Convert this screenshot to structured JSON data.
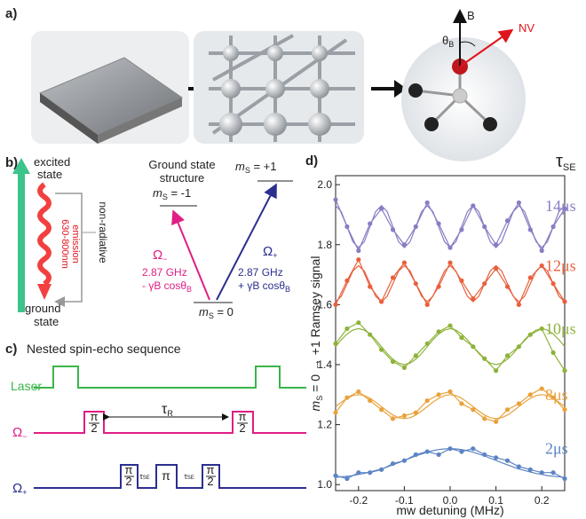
{
  "panel_a": {
    "label": "a)",
    "b_field": "B",
    "theta": [
      "θ",
      "B"
    ],
    "nv": "NV"
  },
  "panel_b": {
    "label": "b)",
    "excited": [
      "excited",
      "state"
    ],
    "ground": [
      "ground",
      "state"
    ],
    "pumping": "532 nm pumping",
    "emission": [
      "630-800nm",
      "emission"
    ],
    "nonradiative": "non-radiative",
    "structure": [
      "Ground state",
      "structure"
    ],
    "m_minus": [
      "m",
      "S",
      " = -1"
    ],
    "m_plus": [
      "m",
      "S",
      " = +1"
    ],
    "m_zero": [
      "m",
      "S",
      " = 0"
    ],
    "omega_minus": [
      "Ω",
      "−"
    ],
    "omega_plus": [
      "Ω",
      "+"
    ],
    "freq": "2.87 GHz",
    "shift_minus": [
      "- γB cosθ",
      "B"
    ],
    "shift_plus": [
      "+ γB cosθ",
      "B"
    ]
  },
  "panel_c": {
    "label": "c)",
    "title": "Nested spin-echo sequence",
    "laser": "Laser",
    "omega_minus": [
      "Ω",
      "−"
    ],
    "omega_plus": [
      "Ω",
      "+"
    ],
    "half_pi": [
      "π",
      "2"
    ],
    "pi": "π",
    "tau_r": [
      "τ",
      "R"
    ],
    "tau_se": [
      "τ",
      "SE"
    ]
  },
  "chart_data": {
    "type": "line",
    "label": "d)",
    "x_label": "mw detuning (MHz)",
    "y_label": [
      "m",
      "S",
      " = 0 → +1 Ramsey signal"
    ],
    "legend_title": [
      "τ",
      "SE"
    ],
    "xlim": [
      -0.25,
      0.25
    ],
    "xticks": [
      -0.2,
      -0.1,
      {
        "value": 0,
        "label": "0.0"
      },
      0.1,
      0.2
    ],
    "ylim": [
      0.98,
      2.03
    ],
    "yticks": [
      {
        "value": 1,
        "label": "1.0"
      },
      1.2,
      1.4,
      1.6,
      1.8,
      {
        "value": 2,
        "label": "2.0"
      }
    ],
    "x": [
      -0.25,
      -0.225,
      -0.2,
      -0.175,
      -0.15,
      -0.125,
      -0.1,
      -0.075,
      -0.05,
      -0.025,
      0,
      0.025,
      0.05,
      0.075,
      0.1,
      0.125,
      0.15,
      0.175,
      0.2,
      0.225,
      0.25
    ],
    "fit_x": [
      -0.25,
      -0.2375,
      -0.225,
      -0.2125,
      -0.2,
      -0.1875,
      -0.175,
      -0.1625,
      -0.15,
      -0.1375,
      -0.125,
      -0.1125,
      -0.1,
      -0.0875,
      -0.075,
      -0.0625,
      -0.05,
      -0.0375,
      -0.025,
      -0.0125,
      0,
      0.0125,
      0.025,
      0.0375,
      0.05,
      0.0625,
      0.075,
      0.0875,
      0.1,
      0.1125,
      0.125,
      0.1375,
      0.15,
      0.1625,
      0.175,
      0.1875,
      0.2,
      0.2125,
      0.225,
      0.2375,
      0.25
    ],
    "series": [
      {
        "name": "14μs",
        "color": "#8a7cc4",
        "values": [
          1.95,
          1.86,
          1.78,
          1.87,
          1.92,
          1.85,
          1.8,
          1.86,
          1.94,
          1.87,
          1.79,
          1.85,
          1.93,
          1.86,
          1.8,
          1.88,
          1.94,
          1.85,
          1.78,
          1.86,
          1.92
        ],
        "fit": [
          1.93,
          1.91,
          1.86,
          1.81,
          1.79,
          1.81,
          1.86,
          1.91,
          1.93,
          1.91,
          1.86,
          1.81,
          1.79,
          1.81,
          1.86,
          1.91,
          1.93,
          1.91,
          1.86,
          1.81,
          1.79,
          1.81,
          1.86,
          1.91,
          1.93,
          1.91,
          1.86,
          1.81,
          1.79,
          1.81,
          1.86,
          1.91,
          1.93,
          1.91,
          1.86,
          1.81,
          1.79,
          1.81,
          1.86,
          1.91,
          1.93
        ]
      },
      {
        "name": "12μs",
        "color": "#e8603c",
        "values": [
          1.6,
          1.68,
          1.75,
          1.66,
          1.61,
          1.69,
          1.74,
          1.67,
          1.6,
          1.66,
          1.74,
          1.68,
          1.62,
          1.67,
          1.72,
          1.66,
          1.6,
          1.69,
          1.73,
          1.67,
          1.61
        ],
        "fit": [
          1.61,
          1.628,
          1.67,
          1.712,
          1.73,
          1.712,
          1.67,
          1.628,
          1.61,
          1.628,
          1.67,
          1.712,
          1.73,
          1.712,
          1.67,
          1.628,
          1.61,
          1.628,
          1.67,
          1.712,
          1.73,
          1.712,
          1.67,
          1.628,
          1.61,
          1.628,
          1.67,
          1.712,
          1.73,
          1.712,
          1.67,
          1.628,
          1.61,
          1.628,
          1.67,
          1.712,
          1.73,
          1.712,
          1.67,
          1.628,
          1.61
        ]
      },
      {
        "name": "10μs",
        "color": "#8db33a",
        "values": [
          1.47,
          1.52,
          1.54,
          1.5,
          1.45,
          1.41,
          1.39,
          1.43,
          1.47,
          1.51,
          1.53,
          1.49,
          1.46,
          1.42,
          1.38,
          1.43,
          1.46,
          1.5,
          1.52,
          1.44,
          1.38
        ],
        "fit": [
          1.46,
          1.483,
          1.502,
          1.515,
          1.52,
          1.515,
          1.502,
          1.483,
          1.46,
          1.437,
          1.418,
          1.405,
          1.4,
          1.405,
          1.418,
          1.437,
          1.46,
          1.483,
          1.502,
          1.515,
          1.52,
          1.515,
          1.502,
          1.483,
          1.46,
          1.437,
          1.418,
          1.405,
          1.4,
          1.405,
          1.418,
          1.437,
          1.46,
          1.483,
          1.502,
          1.515,
          1.52,
          1.515,
          1.502,
          1.483,
          1.46
        ]
      },
      {
        "name": "8μs",
        "color": "#e9a23b",
        "values": [
          1.24,
          1.29,
          1.31,
          1.28,
          1.25,
          1.22,
          1.23,
          1.24,
          1.28,
          1.3,
          1.31,
          1.27,
          1.25,
          1.22,
          1.21,
          1.25,
          1.27,
          1.3,
          1.32,
          1.29,
          1.25
        ],
        "fit": [
          1.26,
          1.275,
          1.288,
          1.297,
          1.3,
          1.297,
          1.288,
          1.275,
          1.26,
          1.245,
          1.232,
          1.223,
          1.22,
          1.223,
          1.232,
          1.245,
          1.26,
          1.275,
          1.288,
          1.297,
          1.3,
          1.297,
          1.288,
          1.275,
          1.26,
          1.245,
          1.232,
          1.223,
          1.22,
          1.223,
          1.232,
          1.245,
          1.26,
          1.275,
          1.288,
          1.297,
          1.3,
          1.297,
          1.288,
          1.275,
          1.26
        ]
      },
      {
        "name": "2μs",
        "color": "#5b84c4",
        "values": [
          1.03,
          1.02,
          1.04,
          1.04,
          1.05,
          1.07,
          1.08,
          1.1,
          1.11,
          1.1,
          1.12,
          1.11,
          1.12,
          1.1,
          1.09,
          1.08,
          1.06,
          1.05,
          1.04,
          1.04,
          1.02
        ],
        "fit": [
          1.024,
          1.026,
          1.028,
          1.03,
          1.034,
          1.037,
          1.042,
          1.047,
          1.052,
          1.059,
          1.066,
          1.073,
          1.081,
          1.088,
          1.096,
          1.102,
          1.108,
          1.113,
          1.117,
          1.119,
          1.12,
          1.119,
          1.117,
          1.113,
          1.108,
          1.102,
          1.096,
          1.088,
          1.081,
          1.073,
          1.066,
          1.059,
          1.052,
          1.047,
          1.042,
          1.037,
          1.034,
          1.03,
          1.028,
          1.026,
          1.024
        ]
      }
    ]
  }
}
